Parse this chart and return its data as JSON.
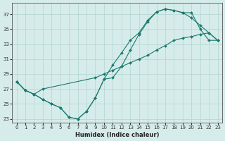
{
  "xlabel": "Humidex (Indice chaleur)",
  "bg_color": "#d6ecea",
  "line_color": "#1a7a6e",
  "grid_color": "#b8d8d4",
  "xlim": [
    -0.5,
    23.5
  ],
  "ylim": [
    22.5,
    38.5
  ],
  "xticks": [
    0,
    1,
    2,
    3,
    4,
    5,
    6,
    7,
    8,
    9,
    10,
    11,
    12,
    13,
    14,
    15,
    16,
    17,
    18,
    19,
    20,
    21,
    22,
    23
  ],
  "yticks": [
    23,
    25,
    27,
    29,
    31,
    33,
    35,
    37
  ],
  "series1_x": [
    0,
    1,
    2,
    3,
    4,
    5,
    6,
    7,
    8,
    9,
    10,
    11,
    12,
    13,
    14,
    15,
    16,
    17,
    18,
    19,
    20,
    21,
    22,
    23
  ],
  "series1_y": [
    28.0,
    26.8,
    26.3,
    25.6,
    25.0,
    24.5,
    23.2,
    23.0,
    24.0,
    25.8,
    28.3,
    30.2,
    31.8,
    33.5,
    34.5,
    36.2,
    37.3,
    37.7,
    37.5,
    37.2,
    37.2,
    35.0,
    33.5,
    33.5
  ],
  "series2_x": [
    0,
    1,
    2,
    3,
    4,
    5,
    6,
    7,
    8,
    9,
    10,
    11,
    12,
    13,
    14,
    15,
    16,
    17,
    18,
    19,
    20,
    21,
    22,
    23
  ],
  "series2_y": [
    28.0,
    26.8,
    26.3,
    25.6,
    25.0,
    24.5,
    23.2,
    23.0,
    24.0,
    25.8,
    28.3,
    28.5,
    30.0,
    32.2,
    34.3,
    36.0,
    37.3,
    37.7,
    37.5,
    37.2,
    36.5,
    35.5,
    34.5,
    33.5
  ],
  "series3_x": [
    0,
    1,
    2,
    3,
    9,
    10,
    11,
    12,
    13,
    14,
    15,
    16,
    17,
    18,
    19,
    20,
    21,
    22,
    23
  ],
  "series3_y": [
    28.0,
    26.8,
    26.3,
    27.0,
    28.5,
    29.0,
    29.5,
    30.0,
    30.5,
    31.0,
    31.5,
    32.2,
    32.8,
    33.5,
    33.8,
    34.0,
    34.3,
    34.5,
    33.5
  ]
}
